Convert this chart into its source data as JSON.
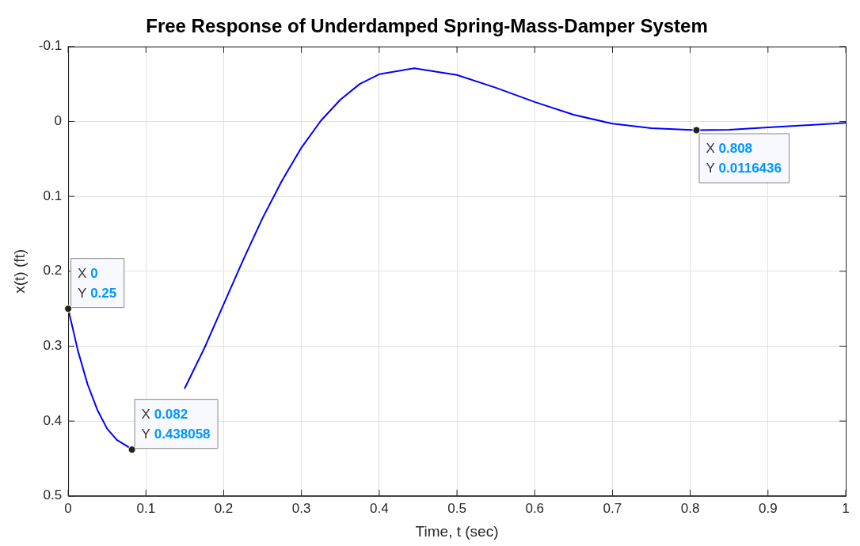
{
  "chart_data": {
    "type": "line",
    "title": "Free Response of Underdamped Spring-Mass-Damper System",
    "xlabel": "Time, t (sec)",
    "ylabel": "x(t) (ft)",
    "x": [
      0,
      0.0125,
      0.025,
      0.0375,
      0.05,
      0.0625,
      0.075,
      0.082,
      0.1,
      0.125,
      0.15,
      0.175,
      0.2,
      0.225,
      0.25,
      0.275,
      0.3,
      0.325,
      0.35,
      0.375,
      0.4,
      0.445,
      0.5,
      0.55,
      0.6,
      0.65,
      0.7,
      0.75,
      0.808,
      0.85,
      0.9,
      0.95,
      1
    ],
    "series": [
      {
        "color": "#0000ff",
        "values": [
          0.25,
          0.306,
          0.351,
          0.385,
          0.41,
          0.425,
          0.433,
          0.438,
          null,
          null,
          0.356,
          0.303,
          0.244,
          0.185,
          0.129,
          0.079,
          0.035,
          -0.001,
          -0.029,
          -0.05,
          -0.063,
          -0.071,
          -0.062,
          -0.045,
          -0.026,
          -0.009,
          0.003,
          0.009,
          0.0116,
          0.011,
          0.008,
          0.005,
          0.002
        ]
      }
    ],
    "xlim": [
      0,
      1
    ],
    "xticks": [
      0,
      0.1,
      0.2,
      0.3,
      0.4,
      0.5,
      0.6,
      0.7,
      0.8,
      0.9,
      1
    ],
    "ylim": [
      0.5,
      -0.1
    ],
    "yticks": [
      -0.1,
      0,
      0.1,
      0.2,
      0.3,
      0.4,
      0.5
    ],
    "grid": true,
    "legend": false,
    "marker": "none",
    "line_style": "solid",
    "annotations": [
      {
        "text": "X 0\nY 0.25",
        "x": 0,
        "y": 0.25
      },
      {
        "text": "X 0.082\nY 0.438058",
        "x": 0.082,
        "y": 0.438058
      },
      {
        "text": "X 0.808\nY 0.0116436",
        "x": 0.808,
        "y": 0.0116436
      }
    ]
  }
}
